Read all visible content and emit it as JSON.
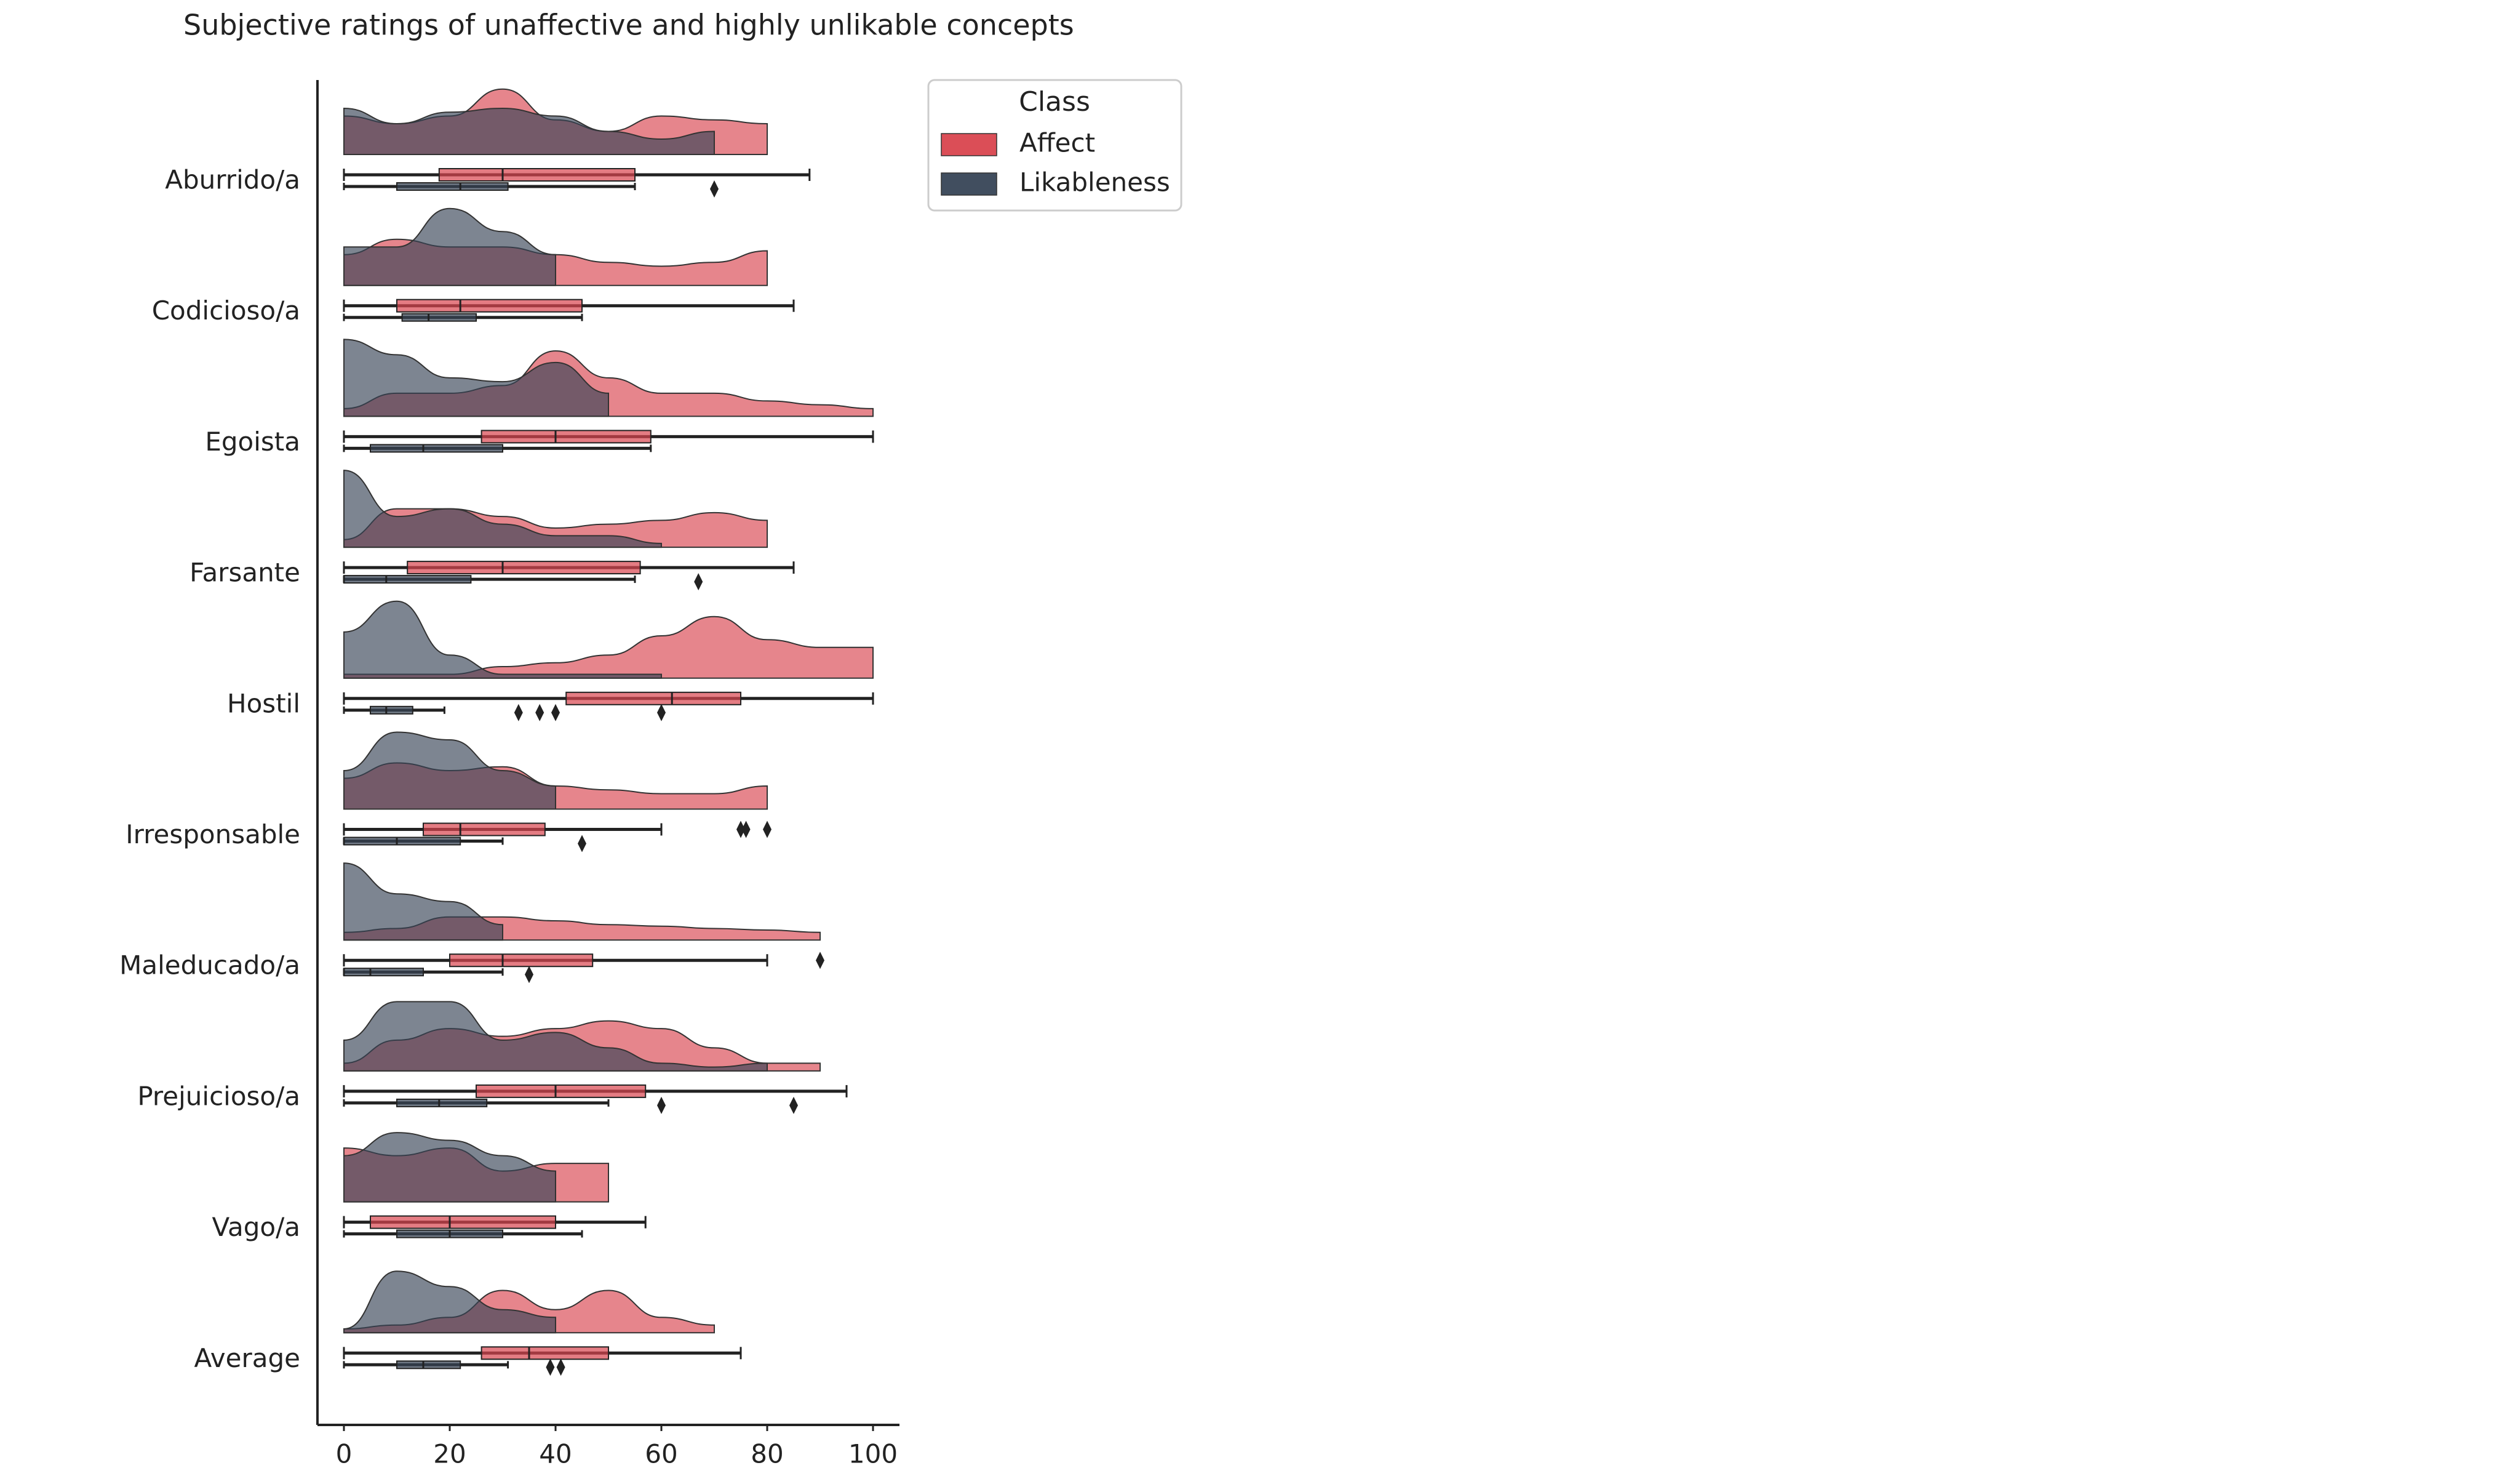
{
  "chart_data": {
    "type": "raincloud",
    "title": "Subjective ratings of unaffective and highly unlikable concepts",
    "categories": [
      "Aburrido/a",
      "Codicioso/a",
      "Egoista",
      "Farsante",
      "Hostil",
      "Irresponsable",
      "Maleducado/a",
      "Prejuicioso/a",
      "Vago/a",
      "Average"
    ],
    "xlim": [
      -5,
      105
    ],
    "xticks": [
      0,
      20,
      40,
      60,
      80,
      100
    ],
    "density_x": [
      0,
      10,
      20,
      30,
      40,
      50,
      60,
      70,
      80,
      90,
      100
    ],
    "legend_title": "Class",
    "legend_position": "upper right outside",
    "series": [
      {
        "name": "Affect",
        "color": "#d9444e",
        "density": [
          [
            0.5,
            0.4,
            0.5,
            0.85,
            0.45,
            0.3,
            0.5,
            0.45,
            0.4,
            null,
            null
          ],
          [
            0.4,
            0.6,
            0.5,
            0.5,
            0.4,
            0.3,
            0.25,
            0.3,
            0.45,
            null,
            null
          ],
          [
            0.1,
            0.3,
            0.3,
            0.4,
            0.85,
            0.5,
            0.3,
            0.3,
            0.2,
            0.15,
            0.1
          ],
          [
            0.1,
            0.5,
            0.5,
            0.4,
            0.25,
            0.3,
            0.35,
            0.45,
            0.35,
            null,
            null
          ],
          [
            0.05,
            0.05,
            0.05,
            0.15,
            0.2,
            0.3,
            0.55,
            0.8,
            0.5,
            0.4,
            0.4
          ],
          [
            0.4,
            0.6,
            0.5,
            0.55,
            0.3,
            0.25,
            0.2,
            0.2,
            0.3,
            null,
            null
          ],
          [
            0.1,
            0.15,
            0.3,
            0.3,
            0.25,
            0.2,
            0.18,
            0.15,
            0.13,
            0.1,
            null
          ],
          [
            0.1,
            0.4,
            0.55,
            0.45,
            0.55,
            0.65,
            0.55,
            0.3,
            0.1,
            0.1,
            null
          ],
          [
            0.7,
            0.6,
            0.7,
            0.4,
            0.5,
            0.5,
            null,
            null,
            null,
            null,
            null
          ],
          [
            0.05,
            0.1,
            0.2,
            0.55,
            0.3,
            0.55,
            0.2,
            0.1,
            null,
            null,
            null
          ]
        ],
        "boxes": [
          {
            "min": 0,
            "q1": 18,
            "median": 30,
            "q3": 55,
            "max": 88,
            "outliers": []
          },
          {
            "min": 0,
            "q1": 10,
            "median": 22,
            "q3": 45,
            "max": 85,
            "outliers": []
          },
          {
            "min": 0,
            "q1": 26,
            "median": 40,
            "q3": 58,
            "max": 100,
            "outliers": []
          },
          {
            "min": 0,
            "q1": 12,
            "median": 30,
            "q3": 56,
            "max": 85,
            "outliers": []
          },
          {
            "min": 0,
            "q1": 42,
            "median": 62,
            "q3": 75,
            "max": 100,
            "outliers": []
          },
          {
            "min": 0,
            "q1": 15,
            "median": 22,
            "q3": 38,
            "max": 60,
            "outliers": [
              75,
              76,
              80
            ]
          },
          {
            "min": 0,
            "q1": 20,
            "median": 30,
            "q3": 47,
            "max": 80,
            "outliers": [
              90
            ]
          },
          {
            "min": 0,
            "q1": 25,
            "median": 40,
            "q3": 57,
            "max": 95,
            "outliers": []
          },
          {
            "min": 0,
            "q1": 5,
            "median": 20,
            "q3": 40,
            "max": 57,
            "outliers": []
          },
          {
            "min": 0,
            "q1": 26,
            "median": 35,
            "q3": 50,
            "max": 75,
            "outliers": []
          }
        ]
      },
      {
        "name": "Likableness",
        "color": "#374456",
        "density": [
          [
            0.6,
            0.4,
            0.55,
            0.6,
            0.5,
            0.3,
            0.2,
            0.3,
            null,
            null,
            null
          ],
          [
            0.5,
            0.5,
            1.0,
            0.7,
            0.4,
            null,
            null,
            null,
            null,
            null,
            null
          ],
          [
            1.0,
            0.8,
            0.5,
            0.45,
            0.7,
            0.3,
            null,
            null,
            null,
            null,
            null
          ],
          [
            1.0,
            0.4,
            0.5,
            0.3,
            0.15,
            0.15,
            0.05,
            null,
            null,
            null,
            null
          ],
          [
            0.6,
            1.0,
            0.3,
            0.05,
            0.05,
            0.05,
            0.05,
            null,
            null,
            null,
            null
          ],
          [
            0.5,
            1.0,
            0.9,
            0.5,
            0.3,
            null,
            null,
            null,
            null,
            null,
            null
          ],
          [
            1.0,
            0.6,
            0.5,
            0.2,
            null,
            null,
            null,
            null,
            null,
            null,
            null
          ],
          [
            0.4,
            0.9,
            0.9,
            0.4,
            0.5,
            0.3,
            0.1,
            0.05,
            0.1,
            null,
            null
          ],
          [
            0.6,
            0.9,
            0.8,
            0.6,
            0.4,
            null,
            null,
            null,
            null,
            null,
            null
          ],
          [
            0.05,
            0.8,
            0.6,
            0.3,
            0.2,
            null,
            null,
            null,
            null,
            null,
            null
          ]
        ],
        "boxes": [
          {
            "min": 0,
            "q1": 10,
            "median": 22,
            "q3": 31,
            "max": 55,
            "outliers": [
              70
            ]
          },
          {
            "min": 0,
            "q1": 11,
            "median": 16,
            "q3": 25,
            "max": 45,
            "outliers": []
          },
          {
            "min": 0,
            "q1": 5,
            "median": 15,
            "q3": 30,
            "max": 58,
            "outliers": []
          },
          {
            "min": 0,
            "q1": 0,
            "median": 8,
            "q3": 24,
            "max": 55,
            "outliers": [
              67
            ]
          },
          {
            "min": 0,
            "q1": 5,
            "median": 8,
            "q3": 13,
            "max": 19,
            "outliers": [
              33,
              37,
              40,
              60
            ]
          },
          {
            "min": 0,
            "q1": 0,
            "median": 10,
            "q3": 22,
            "max": 30,
            "outliers": [
              45
            ]
          },
          {
            "min": 0,
            "q1": 0,
            "median": 5,
            "q3": 15,
            "max": 30,
            "outliers": [
              35
            ]
          },
          {
            "min": 0,
            "q1": 10,
            "median": 18,
            "q3": 27,
            "max": 50,
            "outliers": [
              60,
              85
            ]
          },
          {
            "min": 0,
            "q1": 10,
            "median": 20,
            "q3": 30,
            "max": 45,
            "outliers": []
          },
          {
            "min": 0,
            "q1": 10,
            "median": 15,
            "q3": 22,
            "max": 31,
            "outliers": [
              39,
              41
            ]
          }
        ]
      }
    ]
  }
}
